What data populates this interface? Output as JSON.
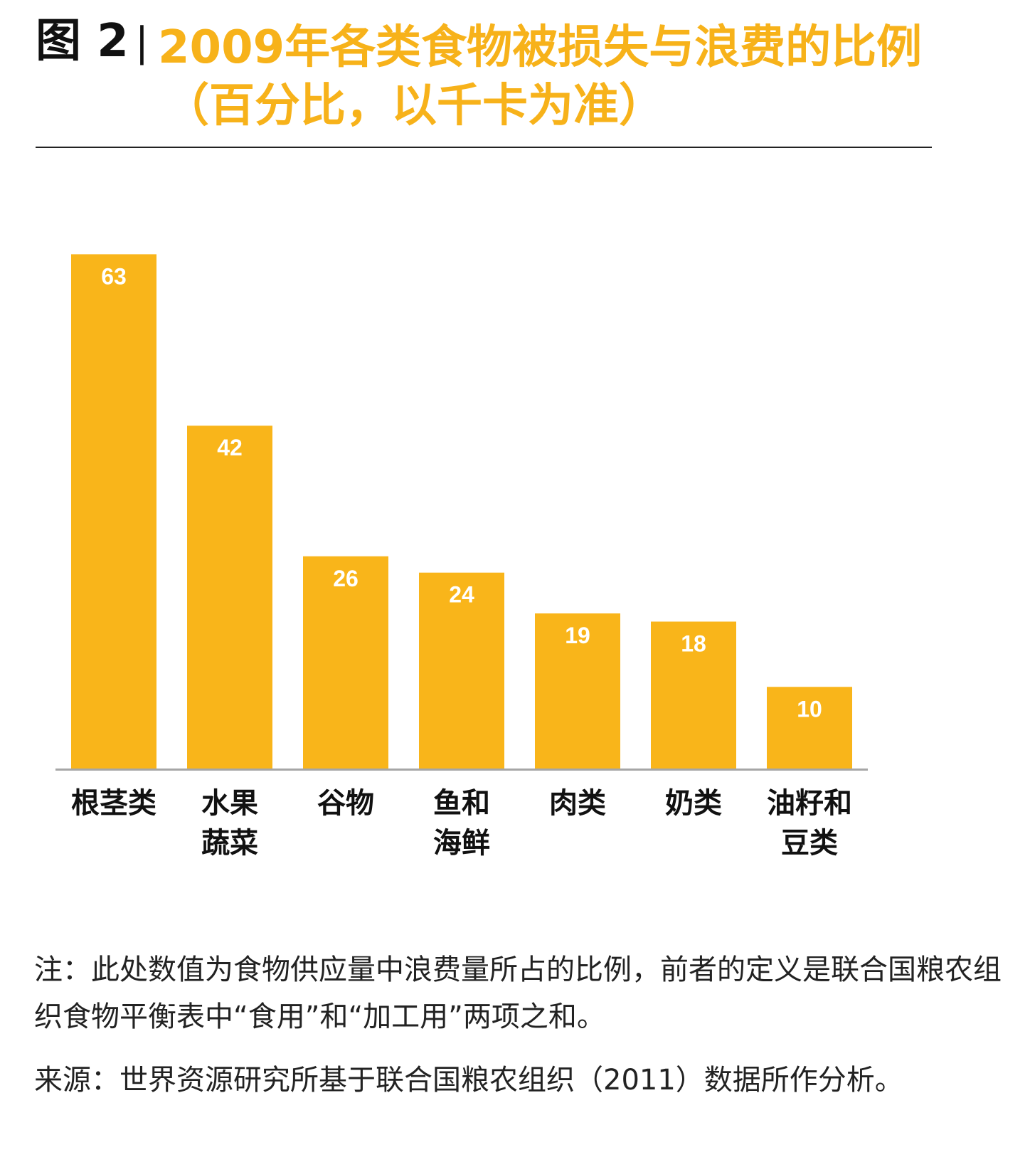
{
  "header": {
    "figure_label": "图 2",
    "separator": "|",
    "title_line1": "2009年各类食物被损失与浪费的比例",
    "title_line2": "（百分比，以千卡为准）"
  },
  "chart_data": {
    "type": "bar",
    "title": "2009年各类食物被损失与浪费的比例（百分比，以千卡为准）",
    "categories": [
      [
        "根茎类"
      ],
      [
        "水果",
        "蔬菜"
      ],
      [
        "谷物"
      ],
      [
        "鱼和",
        "海鲜"
      ],
      [
        "肉类"
      ],
      [
        "奶类"
      ],
      [
        "油籽和",
        "豆类"
      ]
    ],
    "values": [
      63,
      42,
      26,
      24,
      19,
      18,
      10
    ],
    "xlabel": "",
    "ylabel": "",
    "ylim": [
      0,
      68
    ],
    "bar_color": "#F9B51A",
    "value_label_color": "#ffffff",
    "axis_color": "#A6A6A6",
    "grid": false,
    "legend": "none"
  },
  "footer": {
    "note": "注：此处数值为食物供应量中浪费量所占的比例，前者的定义是联合国粮农组织食物平衡表中“食用”和“加工用”两项之和。",
    "source": "来源：世界资源研究所基于联合国粮农组织（2011）数据所作分析。"
  }
}
